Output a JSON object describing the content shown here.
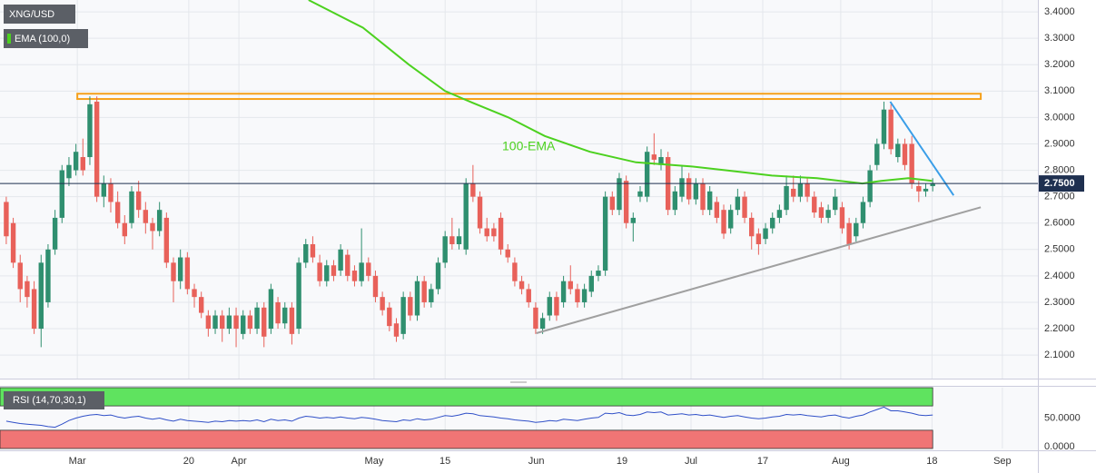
{
  "chart_data": {
    "type": "candlestick",
    "symbol": "XNG/USD",
    "up_color": "#2f8f6f",
    "down_color": "#e8615a",
    "grid": true,
    "x": [
      0,
      1,
      2,
      3,
      4,
      5,
      6,
      7,
      8,
      9,
      10,
      11,
      12,
      13,
      14,
      15,
      16,
      17,
      18,
      19,
      20,
      21,
      22,
      23,
      24,
      25,
      26,
      27,
      28,
      29,
      30,
      31,
      32,
      33,
      34,
      35,
      36,
      37,
      38,
      39,
      40,
      41,
      42,
      43,
      44,
      45,
      46,
      47,
      48,
      49,
      50,
      51,
      52,
      53,
      54,
      55,
      56,
      57,
      58,
      59,
      60,
      61,
      62,
      63,
      64,
      65,
      66,
      67,
      68,
      69,
      70,
      71,
      72,
      73,
      74,
      75,
      76,
      77,
      78,
      79,
      80,
      81,
      82,
      83,
      84,
      85,
      86,
      87,
      88,
      89,
      90,
      91,
      92,
      93,
      94,
      95,
      96,
      97,
      98,
      99,
      100,
      101,
      102,
      103,
      104,
      105,
      106,
      107,
      108,
      109,
      110,
      111,
      112,
      113,
      114,
      115,
      116,
      117,
      118,
      119,
      120,
      121,
      122,
      123,
      124,
      125,
      126,
      127,
      128,
      129,
      130,
      131,
      132,
      133
    ],
    "ohlc": [
      [
        2.68,
        2.7,
        2.52,
        2.55
      ],
      [
        2.6,
        2.62,
        2.43,
        2.45
      ],
      [
        2.45,
        2.48,
        2.3,
        2.35
      ],
      [
        2.38,
        2.4,
        2.28,
        2.32
      ],
      [
        2.35,
        2.38,
        2.18,
        2.2
      ],
      [
        2.2,
        2.48,
        2.13,
        2.45
      ],
      [
        2.3,
        2.52,
        2.28,
        2.5
      ],
      [
        2.5,
        2.65,
        2.48,
        2.62
      ],
      [
        2.62,
        2.82,
        2.6,
        2.8
      ],
      [
        2.77,
        2.85,
        2.74,
        2.82
      ],
      [
        2.8,
        2.9,
        2.78,
        2.87
      ],
      [
        2.85,
        2.92,
        2.78,
        2.8
      ],
      [
        2.85,
        3.08,
        2.82,
        3.05
      ],
      [
        3.06,
        3.08,
        2.68,
        2.7
      ],
      [
        2.7,
        2.78,
        2.66,
        2.75
      ],
      [
        2.75,
        2.77,
        2.64,
        2.68
      ],
      [
        2.68,
        2.72,
        2.58,
        2.6
      ],
      [
        2.6,
        2.63,
        2.52,
        2.55
      ],
      [
        2.6,
        2.74,
        2.58,
        2.72
      ],
      [
        2.72,
        2.76,
        2.62,
        2.65
      ],
      [
        2.65,
        2.68,
        2.56,
        2.6
      ],
      [
        2.6,
        2.62,
        2.5,
        2.57
      ],
      [
        2.57,
        2.68,
        2.55,
        2.65
      ],
      [
        2.62,
        2.64,
        2.43,
        2.45
      ],
      [
        2.45,
        2.47,
        2.3,
        2.38
      ],
      [
        2.38,
        2.5,
        2.35,
        2.47
      ],
      [
        2.47,
        2.49,
        2.33,
        2.35
      ],
      [
        2.35,
        2.37,
        2.28,
        2.32
      ],
      [
        2.32,
        2.34,
        2.24,
        2.26
      ],
      [
        2.25,
        2.27,
        2.17,
        2.2
      ],
      [
        2.2,
        2.27,
        2.18,
        2.25
      ],
      [
        2.25,
        2.27,
        2.15,
        2.2
      ],
      [
        2.2,
        2.28,
        2.18,
        2.25
      ],
      [
        2.25,
        2.28,
        2.13,
        2.2
      ],
      [
        2.18,
        2.27,
        2.16,
        2.25
      ],
      [
        2.25,
        2.27,
        2.18,
        2.2
      ],
      [
        2.2,
        2.3,
        2.18,
        2.28
      ],
      [
        2.28,
        2.3,
        2.13,
        2.17
      ],
      [
        2.2,
        2.37,
        2.18,
        2.35
      ],
      [
        2.3,
        2.32,
        2.2,
        2.22
      ],
      [
        2.22,
        2.3,
        2.2,
        2.28
      ],
      [
        2.28,
        2.3,
        2.14,
        2.18
      ],
      [
        2.2,
        2.47,
        2.18,
        2.45
      ],
      [
        2.45,
        2.54,
        2.43,
        2.52
      ],
      [
        2.52,
        2.55,
        2.45,
        2.47
      ],
      [
        2.45,
        2.48,
        2.36,
        2.38
      ],
      [
        2.38,
        2.46,
        2.36,
        2.44
      ],
      [
        2.44,
        2.46,
        2.38,
        2.4
      ],
      [
        2.42,
        2.52,
        2.4,
        2.5
      ],
      [
        2.48,
        2.5,
        2.38,
        2.4
      ],
      [
        2.42,
        2.44,
        2.36,
        2.38
      ],
      [
        2.38,
        2.58,
        2.36,
        2.45
      ],
      [
        2.45,
        2.47,
        2.38,
        2.4
      ],
      [
        2.4,
        2.42,
        2.3,
        2.32
      ],
      [
        2.32,
        2.34,
        2.25,
        2.27
      ],
      [
        2.28,
        2.3,
        2.19,
        2.21
      ],
      [
        2.22,
        2.24,
        2.15,
        2.17
      ],
      [
        2.18,
        2.34,
        2.16,
        2.32
      ],
      [
        2.32,
        2.34,
        2.23,
        2.25
      ],
      [
        2.25,
        2.4,
        2.23,
        2.38
      ],
      [
        2.38,
        2.4,
        2.28,
        2.3
      ],
      [
        2.3,
        2.37,
        2.28,
        2.35
      ],
      [
        2.35,
        2.47,
        2.33,
        2.45
      ],
      [
        2.45,
        2.57,
        2.43,
        2.55
      ],
      [
        2.55,
        2.62,
        2.5,
        2.52
      ],
      [
        2.52,
        2.58,
        2.5,
        2.55
      ],
      [
        2.5,
        2.77,
        2.48,
        2.75
      ],
      [
        2.75,
        2.82,
        2.68,
        2.7
      ],
      [
        2.7,
        2.72,
        2.56,
        2.58
      ],
      [
        2.58,
        2.62,
        2.53,
        2.55
      ],
      [
        2.58,
        2.6,
        2.53,
        2.55
      ],
      [
        2.62,
        2.64,
        2.48,
        2.5
      ],
      [
        2.5,
        2.52,
        2.45,
        2.47
      ],
      [
        2.45,
        2.47,
        2.36,
        2.38
      ],
      [
        2.38,
        2.4,
        2.33,
        2.35
      ],
      [
        2.35,
        2.37,
        2.28,
        2.3
      ],
      [
        2.28,
        2.3,
        2.18,
        2.2
      ],
      [
        2.2,
        2.26,
        2.18,
        2.24
      ],
      [
        2.25,
        2.34,
        2.23,
        2.32
      ],
      [
        2.32,
        2.34,
        2.23,
        2.25
      ],
      [
        2.3,
        2.4,
        2.28,
        2.38
      ],
      [
        2.38,
        2.44,
        2.33,
        2.35
      ],
      [
        2.35,
        2.37,
        2.28,
        2.3
      ],
      [
        2.3,
        2.37,
        2.28,
        2.35
      ],
      [
        2.34,
        2.42,
        2.32,
        2.4
      ],
      [
        2.4,
        2.44,
        2.38,
        2.42
      ],
      [
        2.42,
        2.72,
        2.4,
        2.7
      ],
      [
        2.7,
        2.72,
        2.63,
        2.65
      ],
      [
        2.65,
        2.79,
        2.63,
        2.77
      ],
      [
        2.76,
        2.78,
        2.58,
        2.6
      ],
      [
        2.6,
        2.64,
        2.53,
        2.62
      ],
      [
        2.7,
        2.74,
        2.68,
        2.72
      ],
      [
        2.7,
        2.89,
        2.68,
        2.87
      ],
      [
        2.86,
        2.94,
        2.82,
        2.84
      ],
      [
        2.82,
        2.88,
        2.8,
        2.85
      ],
      [
        2.85,
        2.87,
        2.63,
        2.65
      ],
      [
        2.65,
        2.74,
        2.63,
        2.72
      ],
      [
        2.7,
        2.82,
        2.68,
        2.77
      ],
      [
        2.77,
        2.79,
        2.67,
        2.69
      ],
      [
        2.69,
        2.77,
        2.67,
        2.75
      ],
      [
        2.75,
        2.77,
        2.63,
        2.65
      ],
      [
        2.65,
        2.74,
        2.63,
        2.72
      ],
      [
        2.68,
        2.7,
        2.6,
        2.62
      ],
      [
        2.65,
        2.67,
        2.54,
        2.56
      ],
      [
        2.58,
        2.67,
        2.56,
        2.65
      ],
      [
        2.65,
        2.73,
        2.63,
        2.7
      ],
      [
        2.7,
        2.72,
        2.6,
        2.62
      ],
      [
        2.62,
        2.64,
        2.5,
        2.55
      ],
      [
        2.56,
        2.58,
        2.48,
        2.52
      ],
      [
        2.54,
        2.6,
        2.52,
        2.58
      ],
      [
        2.58,
        2.64,
        2.56,
        2.62
      ],
      [
        2.62,
        2.67,
        2.6,
        2.65
      ],
      [
        2.65,
        2.78,
        2.63,
        2.74
      ],
      [
        2.73,
        2.78,
        2.68,
        2.7
      ],
      [
        2.7,
        2.78,
        2.68,
        2.75
      ],
      [
        2.75,
        2.77,
        2.68,
        2.7
      ],
      [
        2.7,
        2.72,
        2.62,
        2.64
      ],
      [
        2.66,
        2.68,
        2.6,
        2.62
      ],
      [
        2.62,
        2.67,
        2.6,
        2.65
      ],
      [
        2.65,
        2.73,
        2.63,
        2.7
      ],
      [
        2.66,
        2.68,
        2.56,
        2.58
      ],
      [
        2.6,
        2.62,
        2.5,
        2.52
      ],
      [
        2.55,
        2.62,
        2.53,
        2.6
      ],
      [
        2.6,
        2.7,
        2.58,
        2.68
      ],
      [
        2.68,
        2.82,
        2.66,
        2.8
      ],
      [
        2.82,
        2.92,
        2.8,
        2.9
      ],
      [
        2.9,
        3.06,
        2.88,
        3.03
      ],
      [
        3.03,
        3.05,
        2.86,
        2.88
      ],
      [
        2.85,
        2.92,
        2.83,
        2.9
      ],
      [
        2.9,
        2.92,
        2.8,
        2.82
      ],
      [
        2.9,
        2.93,
        2.73,
        2.75
      ],
      [
        2.74,
        2.76,
        2.68,
        2.72
      ],
      [
        2.72,
        2.75,
        2.7,
        2.73
      ],
      [
        2.74,
        2.77,
        2.72,
        2.75
      ]
    ],
    "xlim": [
      -0.9,
      148.1
    ],
    "xticks": [
      {
        "value": 10.2,
        "label": "Mar"
      },
      {
        "value": 26.2,
        "label": "20"
      },
      {
        "value": 33.4,
        "label": "Apr"
      },
      {
        "value": 52.8,
        "label": "May"
      },
      {
        "value": 63,
        "label": "15"
      },
      {
        "value": 76.1,
        "label": "Jun"
      },
      {
        "value": 88.4,
        "label": "19"
      },
      {
        "value": 98.3,
        "label": "Jul"
      },
      {
        "value": 108.6,
        "label": "17"
      },
      {
        "value": 119.8,
        "label": "Aug"
      },
      {
        "value": 132.9,
        "label": "18"
      },
      {
        "value": 143,
        "label": "Sep"
      }
    ],
    "ylim": [
      2.011,
      3.445
    ],
    "yticks": [
      {
        "value": 2.1,
        "label": "2.1000"
      },
      {
        "value": 2.2,
        "label": "2.2000"
      },
      {
        "value": 2.3,
        "label": "2.3000"
      },
      {
        "value": 2.4,
        "label": "2.4000"
      },
      {
        "value": 2.5,
        "label": "2.5000"
      },
      {
        "value": 2.6,
        "label": "2.6000"
      },
      {
        "value": 2.7,
        "label": "2.7000"
      },
      {
        "value": 2.8,
        "label": "2.8000"
      },
      {
        "value": 2.9,
        "label": "2.9000"
      },
      {
        "value": 3.0,
        "label": "3.0000"
      },
      {
        "value": 3.1,
        "label": "3.1000"
      },
      {
        "value": 3.2,
        "label": "3.2000"
      },
      {
        "value": 3.3,
        "label": "3.3000"
      },
      {
        "value": 3.4,
        "label": "3.4000"
      }
    ],
    "ema": {
      "name": "EMA (100,0)",
      "label": "100-EMA",
      "color": "#4cd11f",
      "x": [
        43.4,
        51.2,
        57.8,
        63,
        66.9,
        72.1,
        77.3,
        83.8,
        90.4,
        98.2,
        103.4,
        109.9,
        116.4,
        122.9,
        125.6,
        129.5,
        132.9
      ],
      "values": [
        3.445,
        3.34,
        3.2,
        3.1,
        3.056,
        3.0,
        2.93,
        2.87,
        2.83,
        2.815,
        2.8,
        2.78,
        2.77,
        2.75,
        2.76,
        2.77,
        2.76
      ]
    },
    "resistance": {
      "from": 3.07,
      "to": 3.09,
      "x": [
        10.2,
        139.9
      ],
      "color": "#f5a01a"
    },
    "trendlines": [
      {
        "x": [
          126.9,
          136
        ],
        "values": [
          3.06,
          2.705
        ],
        "color": "#3a9ee8"
      },
      {
        "x": [
          76.1,
          139.9
        ],
        "values": [
          2.183,
          2.66
        ],
        "color": "#a0a0a0"
      }
    ],
    "last_price": {
      "value": 2.75,
      "label": "2.7500",
      "color": "#1f3050"
    },
    "rsi": {
      "name": "RSI (14,70,30,1)",
      "color": "#3050c8",
      "ylim": [
        0,
        100
      ],
      "yticks": [
        {
          "value": 50,
          "label": "50.0000"
        },
        {
          "value": 0,
          "label": "0.0000"
        }
      ],
      "overbought": 70,
      "oversold": 30,
      "overbought_color": "#5fe35f",
      "oversold_color": "#f07575",
      "values": [
        45,
        43,
        41,
        40,
        39,
        38,
        36,
        35,
        40,
        46,
        50,
        53,
        55,
        56,
        54,
        55,
        52,
        50,
        52,
        53,
        50,
        48,
        50,
        47,
        45,
        48,
        46,
        45,
        44,
        43,
        45,
        44,
        46,
        45,
        46,
        45,
        47,
        44,
        48,
        46,
        47,
        45,
        50,
        53,
        52,
        50,
        51,
        50,
        52,
        50,
        49,
        51,
        50,
        48,
        46,
        45,
        44,
        47,
        46,
        49,
        47,
        48,
        51,
        54,
        53,
        55,
        58,
        57,
        54,
        53,
        52,
        50,
        49,
        47,
        46,
        45,
        43,
        44,
        46,
        45,
        48,
        47,
        46,
        48,
        50,
        51,
        58,
        57,
        59,
        55,
        54,
        56,
        60,
        59,
        60,
        55,
        56,
        57,
        55,
        56,
        54,
        55,
        53,
        51,
        53,
        54,
        52,
        50,
        49,
        50,
        52,
        53,
        56,
        55,
        56,
        54,
        53,
        52,
        54,
        55,
        52,
        50,
        53,
        55,
        60,
        64,
        68,
        62,
        62,
        60,
        58,
        55,
        54,
        55
      ]
    }
  }
}
